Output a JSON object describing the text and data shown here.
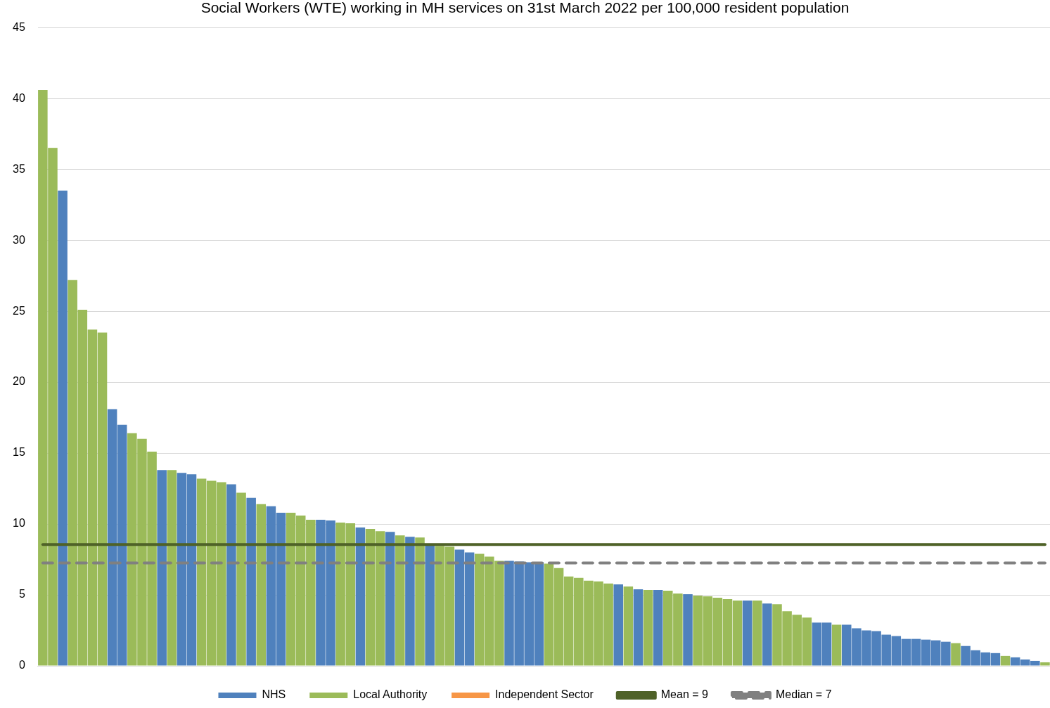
{
  "chart_data": {
    "type": "bar",
    "title": "Social Workers (WTE) working in MH services on 31st March 2022 per 100,000 resident population",
    "categories": [
      null,
      null,
      null,
      null,
      null,
      null,
      null,
      null,
      null,
      null,
      null,
      null,
      null,
      null,
      null,
      null,
      null,
      null,
      null,
      null,
      null,
      null,
      null,
      null,
      null,
      null,
      null,
      null,
      null,
      null,
      null,
      null,
      null,
      null,
      null,
      null,
      null,
      null,
      null,
      null,
      null,
      null,
      null,
      null,
      null,
      null,
      null,
      null,
      null,
      null,
      null,
      null,
      null,
      null,
      null,
      null,
      null,
      null,
      null,
      null,
      null,
      null,
      null,
      null,
      null,
      null,
      null,
      null,
      null,
      null,
      null,
      null,
      null,
      null,
      null,
      null,
      null,
      null,
      null,
      null,
      null,
      null,
      null,
      null,
      null,
      null,
      null,
      null,
      null,
      null,
      null,
      null,
      null,
      null,
      null,
      null,
      null,
      null,
      null,
      null,
      null,
      null
    ],
    "stacked": true,
    "series": [
      {
        "name": "NHS",
        "color": "#4f81bd",
        "values": [
          null,
          null,
          33.5,
          null,
          null,
          null,
          null,
          18.1,
          17.0,
          null,
          null,
          null,
          13.8,
          null,
          13.6,
          13.5,
          null,
          null,
          null,
          12.8,
          null,
          11.85,
          null,
          11.25,
          10.8,
          null,
          null,
          null,
          10.3,
          10.25,
          null,
          null,
          9.75,
          null,
          null,
          9.45,
          null,
          9.1,
          null,
          8.55,
          null,
          null,
          8.2,
          8.0,
          null,
          null,
          null,
          7.4,
          7.35,
          7.3,
          7.3,
          null,
          null,
          null,
          null,
          null,
          null,
          null,
          5.75,
          null,
          5.4,
          null,
          5.35,
          null,
          null,
          5.05,
          null,
          null,
          null,
          null,
          null,
          4.6,
          null,
          4.4,
          null,
          null,
          null,
          null,
          3.05,
          3.05,
          null,
          2.9,
          2.65,
          2.5,
          2.45,
          2.2,
          2.1,
          1.9,
          1.9,
          1.85,
          1.8,
          1.7,
          null,
          1.4,
          1.1,
          0.95,
          0.9,
          null,
          0.6,
          0.45,
          0.35,
          null
        ]
      },
      {
        "name": "Local Authority",
        "color": "#9bbb59",
        "values": [
          40.6,
          36.5,
          null,
          27.2,
          25.1,
          23.7,
          23.5,
          null,
          null,
          16.4,
          16.0,
          15.1,
          null,
          13.8,
          null,
          null,
          13.2,
          13.05,
          12.95,
          null,
          12.2,
          null,
          11.4,
          null,
          null,
          10.8,
          10.6,
          10.3,
          null,
          null,
          10.1,
          10.05,
          null,
          9.65,
          9.5,
          null,
          9.2,
          null,
          9.05,
          null,
          8.45,
          8.4,
          null,
          null,
          7.9,
          7.7,
          7.4,
          null,
          null,
          null,
          null,
          7.2,
          6.9,
          6.3,
          6.2,
          6.0,
          5.95,
          5.8,
          null,
          5.6,
          null,
          5.35,
          null,
          5.3,
          5.1,
          null,
          4.95,
          4.9,
          4.8,
          4.7,
          4.6,
          null,
          4.6,
          null,
          4.35,
          3.85,
          3.6,
          3.4,
          null,
          null,
          2.9,
          null,
          null,
          null,
          null,
          null,
          null,
          null,
          null,
          null,
          null,
          null,
          1.6,
          null,
          null,
          null,
          null,
          0.7,
          null,
          null,
          null,
          0.25
        ]
      },
      {
        "name": "Independent Sector",
        "color": "#f79646",
        "values": [
          null,
          null,
          null,
          null,
          null,
          null,
          null,
          null,
          null,
          null,
          null,
          null,
          null,
          null,
          null,
          null,
          null,
          null,
          null,
          null,
          null,
          null,
          null,
          null,
          null,
          null,
          null,
          null,
          null,
          null,
          null,
          null,
          null,
          null,
          null,
          null,
          null,
          null,
          null,
          null,
          null,
          null,
          null,
          null,
          null,
          null,
          null,
          null,
          null,
          null,
          null,
          null,
          null,
          null,
          null,
          null,
          null,
          null,
          null,
          null,
          null,
          null,
          null,
          null,
          null,
          null,
          null,
          null,
          null,
          null,
          null,
          null,
          null,
          null,
          null,
          null,
          null,
          null,
          null,
          null,
          null,
          null,
          null,
          null,
          null,
          null,
          null,
          null,
          null,
          null,
          null,
          null,
          null,
          null,
          null,
          null,
          null,
          null,
          null,
          null,
          null,
          null
        ]
      },
      {
        "name": "Mean = 9",
        "type": "line",
        "color": "#4f6228",
        "line_style": "solid",
        "values": [
          8.55,
          8.55,
          8.55,
          8.55,
          8.55,
          8.55,
          8.55,
          8.55,
          8.55,
          8.55,
          8.55,
          8.55,
          8.55,
          8.55,
          8.55,
          8.55,
          8.55,
          8.55,
          8.55,
          8.55,
          8.55,
          8.55,
          8.55,
          8.55,
          8.55,
          8.55,
          8.55,
          8.55,
          8.55,
          8.55,
          8.55,
          8.55,
          8.55,
          8.55,
          8.55,
          8.55,
          8.55,
          8.55,
          8.55,
          8.55,
          8.55,
          8.55,
          8.55,
          8.55,
          8.55,
          8.55,
          8.55,
          8.55,
          8.55,
          8.55,
          8.55,
          8.55,
          8.55,
          8.55,
          8.55,
          8.55,
          8.55,
          8.55,
          8.55,
          8.55,
          8.55,
          8.55,
          8.55,
          8.55,
          8.55,
          8.55,
          8.55,
          8.55,
          8.55,
          8.55,
          8.55,
          8.55,
          8.55,
          8.55,
          8.55,
          8.55,
          8.55,
          8.55,
          8.55,
          8.55,
          8.55,
          8.55,
          8.55,
          8.55,
          8.55,
          8.55,
          8.55,
          8.55,
          8.55,
          8.55,
          8.55,
          8.55,
          8.55,
          8.55,
          8.55,
          8.55,
          8.55,
          8.55,
          8.55,
          8.55,
          8.55,
          8.55
        ]
      },
      {
        "name": "Median = 7",
        "type": "line",
        "color": "#808080",
        "line_style": "dashed",
        "values": [
          7.25,
          7.25,
          7.25,
          7.25,
          7.25,
          7.25,
          7.25,
          7.25,
          7.25,
          7.25,
          7.25,
          7.25,
          7.25,
          7.25,
          7.25,
          7.25,
          7.25,
          7.25,
          7.25,
          7.25,
          7.25,
          7.25,
          7.25,
          7.25,
          7.25,
          7.25,
          7.25,
          7.25,
          7.25,
          7.25,
          7.25,
          7.25,
          7.25,
          7.25,
          7.25,
          7.25,
          7.25,
          7.25,
          7.25,
          7.25,
          7.25,
          7.25,
          7.25,
          7.25,
          7.25,
          7.25,
          7.25,
          7.25,
          7.25,
          7.25,
          7.25,
          7.25,
          7.25,
          7.25,
          7.25,
          7.25,
          7.25,
          7.25,
          7.25,
          7.25,
          7.25,
          7.25,
          7.25,
          7.25,
          7.25,
          7.25,
          7.25,
          7.25,
          7.25,
          7.25,
          7.25,
          7.25,
          7.25,
          7.25,
          7.25,
          7.25,
          7.25,
          7.25,
          7.25,
          7.25,
          7.25,
          7.25,
          7.25,
          7.25,
          7.25,
          7.25,
          7.25,
          7.25,
          7.25,
          7.25,
          7.25,
          7.25,
          7.25,
          7.25,
          7.25,
          7.25,
          7.25,
          7.25,
          7.25,
          7.25,
          7.25,
          7.25
        ]
      }
    ],
    "ylim": [
      0,
      45
    ],
    "yticks": [
      0,
      5,
      10,
      15,
      20,
      25,
      30,
      35,
      40,
      45
    ],
    "grid": "y",
    "legend": "bottom",
    "tick_labels": "y"
  }
}
